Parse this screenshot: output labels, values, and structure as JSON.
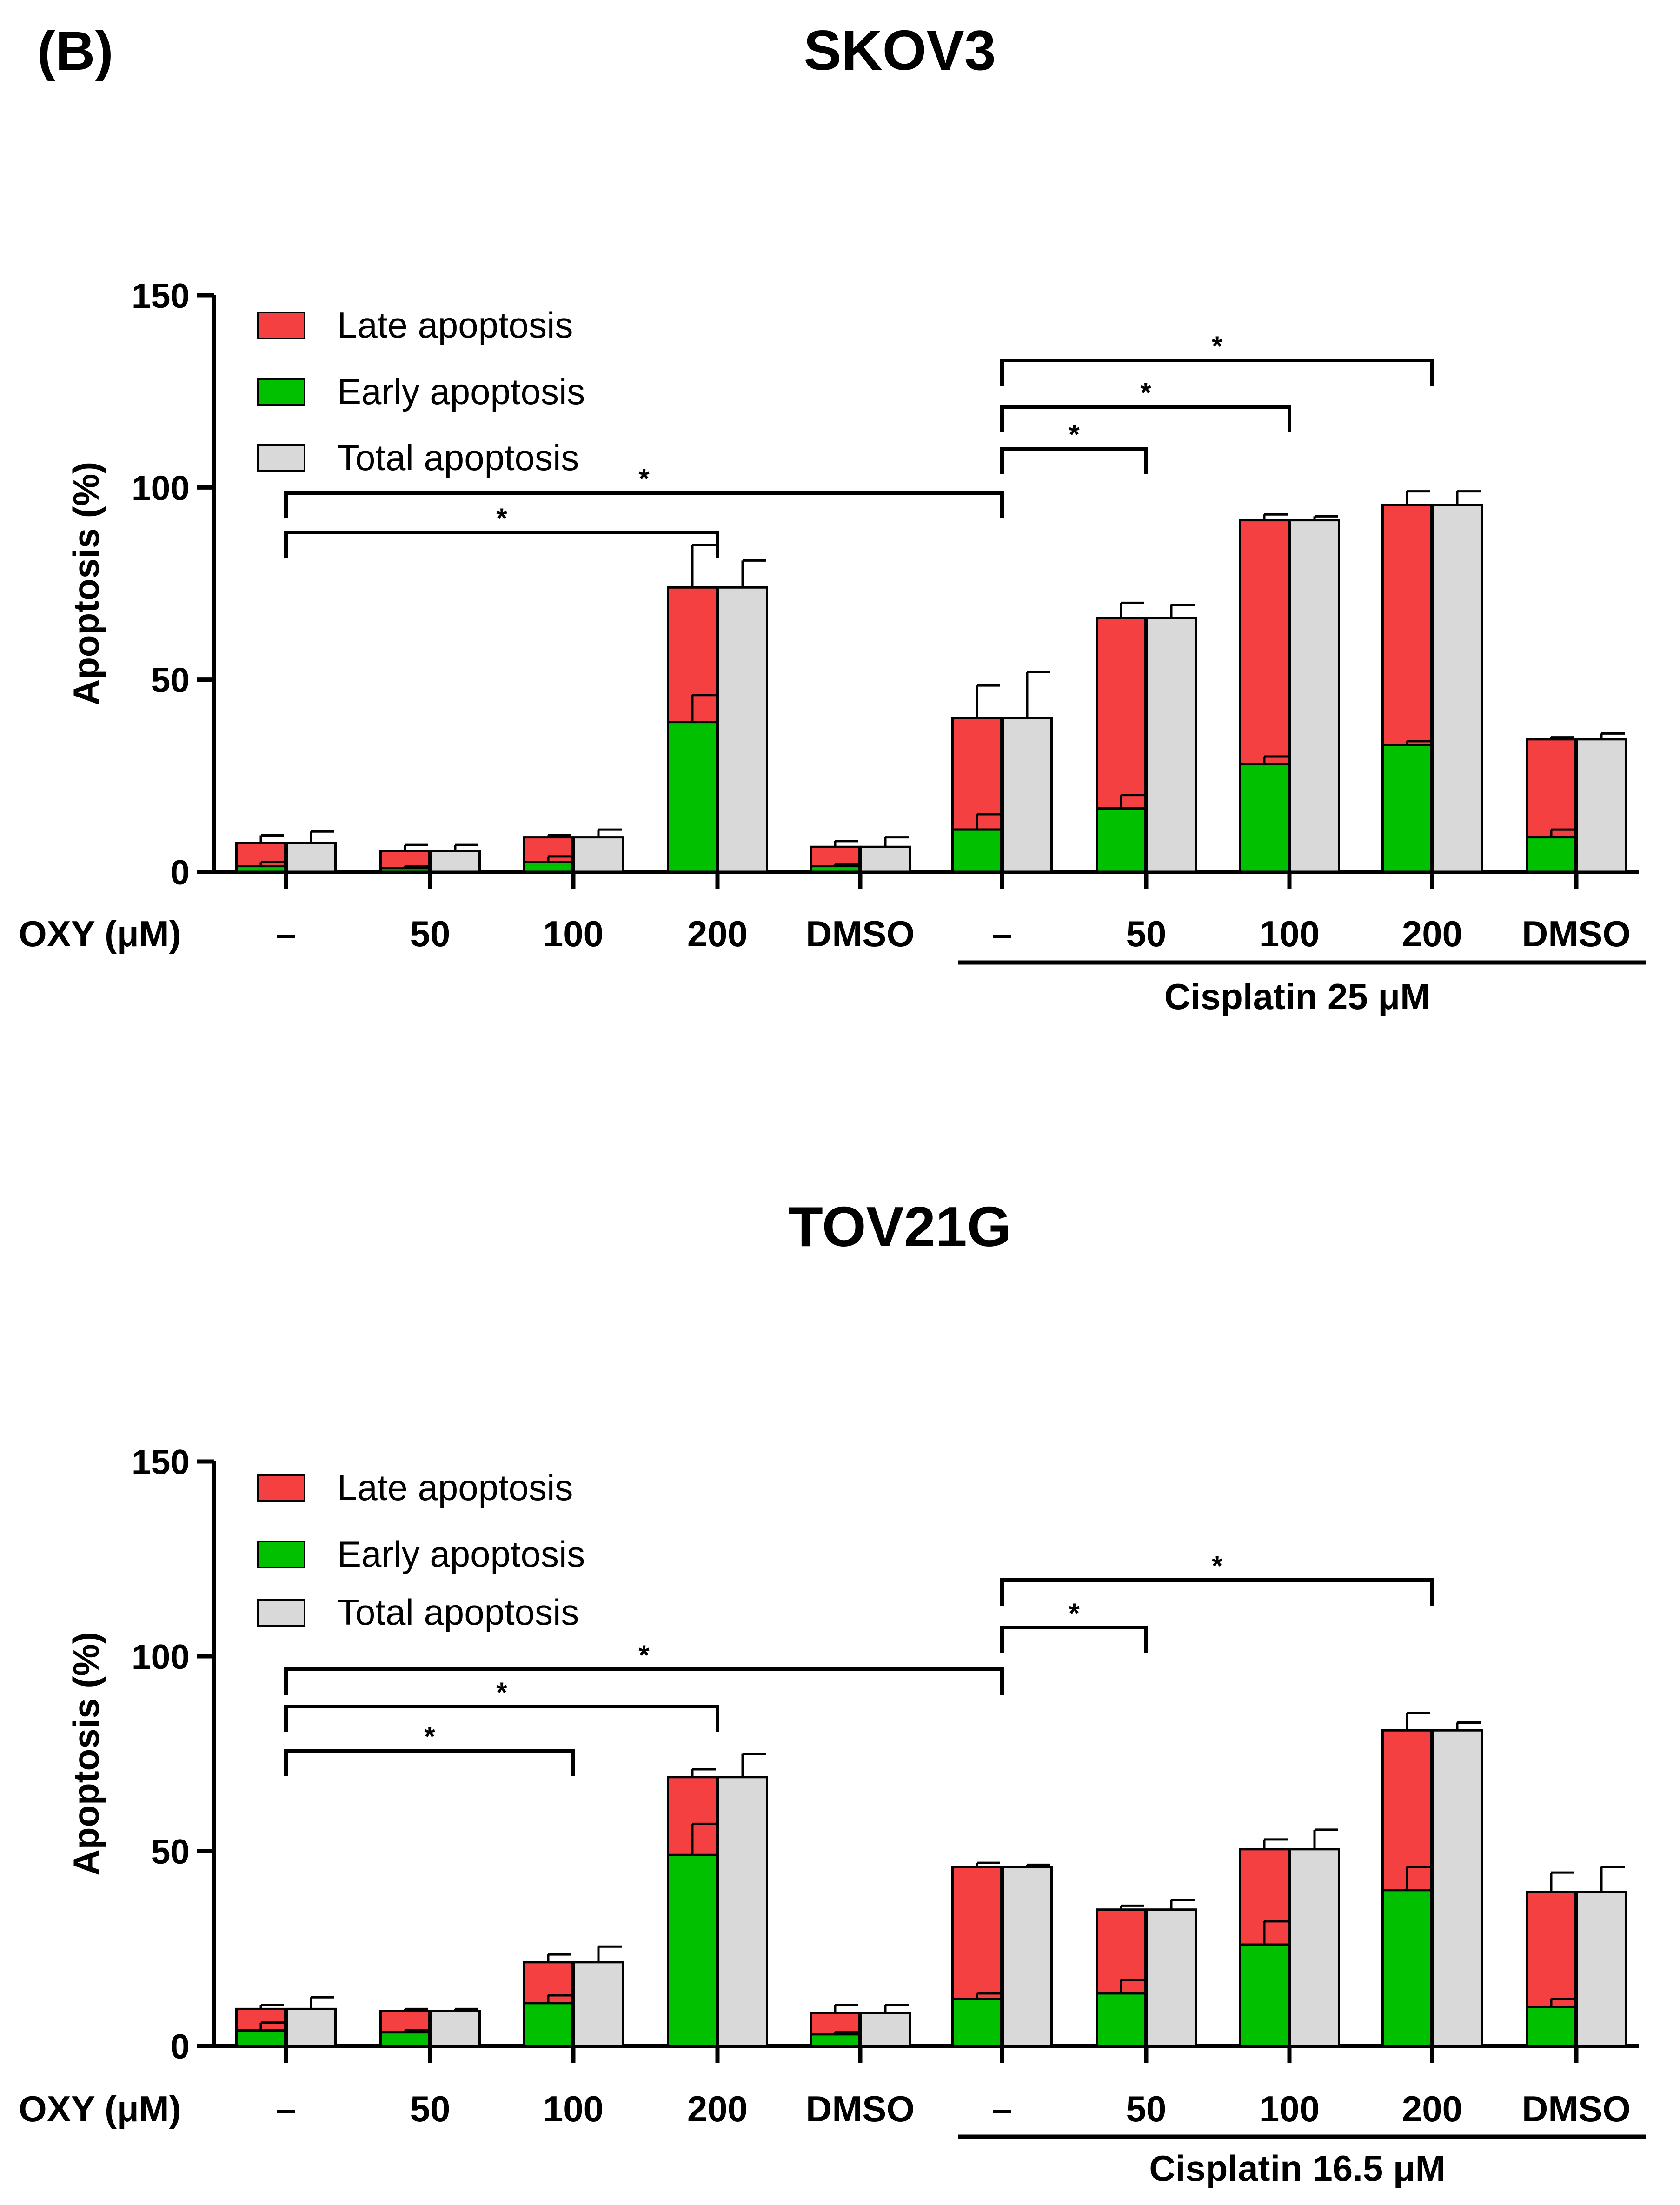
{
  "panel_label": "(B)",
  "chart_data": [
    {
      "type": "bar",
      "title": "SKOV3",
      "ylabel": "Apoptosis (%)",
      "ylim": [
        0,
        150
      ],
      "yticks": [
        0,
        50,
        100,
        150
      ],
      "x_row_label": "OXY (μM)",
      "categories": [
        "–",
        "50",
        "100",
        "200",
        "DMSO",
        "–",
        "50",
        "100",
        "200",
        "DMSO"
      ],
      "group_label": "Cisplatin 25 μM",
      "legend": [
        {
          "name": "Late apoptosis",
          "color": "#f44040"
        },
        {
          "name": "Early apoptosis",
          "color": "#00c000"
        },
        {
          "name": "Total apoptosis",
          "color": "#d9d9d9"
        }
      ],
      "series": [
        {
          "name": "Early apoptosis",
          "values": [
            1.5,
            1,
            2.5,
            39,
            1.5,
            11,
            16.5,
            28,
            33,
            9
          ],
          "errors": [
            1,
            0.5,
            1.5,
            7,
            0.5,
            4,
            3.5,
            2,
            1,
            2
          ]
        },
        {
          "name": "Late apoptosis",
          "values": [
            6,
            4.5,
            6.5,
            35,
            5,
            29,
            49.5,
            63.5,
            62.5,
            25.5
          ],
          "errors": [
            2,
            1.5,
            0.5,
            11,
            1.5,
            8.5,
            4,
            1.5,
            3.5,
            0.5
          ]
        },
        {
          "name": "Total apoptosis",
          "values": [
            7.5,
            5.5,
            9,
            74,
            6.5,
            40,
            66,
            91.5,
            95.5,
            34.5
          ],
          "errors": [
            3,
            1.5,
            2,
            7,
            2.5,
            12,
            3.5,
            1,
            3.5,
            1.5
          ]
        }
      ],
      "significance": [
        {
          "from": 0,
          "to": 3,
          "label": "*"
        },
        {
          "from": 0,
          "to": 5,
          "label": "*"
        },
        {
          "from": 5,
          "to": 6,
          "label": "*"
        },
        {
          "from": 5,
          "to": 7,
          "label": "*"
        },
        {
          "from": 5,
          "to": 8,
          "label": "*"
        }
      ]
    },
    {
      "type": "bar",
      "title": "TOV21G",
      "ylabel": "Apoptosis (%)",
      "ylim": [
        0,
        150
      ],
      "yticks": [
        0,
        50,
        100,
        150
      ],
      "x_row_label": "OXY (μM)",
      "categories": [
        "–",
        "50",
        "100",
        "200",
        "DMSO",
        "–",
        "50",
        "100",
        "200",
        "DMSO"
      ],
      "group_label": "Cisplatin 16.5 μM",
      "legend": [
        {
          "name": "Late apoptosis",
          "color": "#f44040"
        },
        {
          "name": "Early apoptosis",
          "color": "#00c000"
        },
        {
          "name": "Total apoptosis",
          "color": "#d9d9d9"
        }
      ],
      "series": [
        {
          "name": "Early apoptosis",
          "values": [
            4,
            3.5,
            11,
            49,
            3,
            12,
            13.5,
            26,
            40,
            10
          ],
          "errors": [
            2,
            0.5,
            2,
            8,
            0.5,
            1.5,
            3.5,
            6,
            6,
            2
          ]
        },
        {
          "name": "Late apoptosis",
          "values": [
            5.5,
            5.5,
            10.5,
            20,
            5.5,
            34,
            21.5,
            24.5,
            41,
            29.5
          ],
          "errors": [
            1,
            0.5,
            2,
            2,
            2,
            1,
            1,
            2.5,
            4.5,
            5
          ]
        },
        {
          "name": "Total apoptosis",
          "values": [
            9.5,
            9,
            21.5,
            69,
            8.5,
            46,
            35,
            50.5,
            81,
            39.5
          ],
          "errors": [
            3,
            0.5,
            4,
            6,
            2,
            0.5,
            2.5,
            5,
            2,
            6.5
          ]
        }
      ],
      "significance": [
        {
          "from": 0,
          "to": 2,
          "label": "*"
        },
        {
          "from": 0,
          "to": 3,
          "label": "*"
        },
        {
          "from": 0,
          "to": 5,
          "label": "*"
        },
        {
          "from": 5,
          "to": 6,
          "label": "*"
        },
        {
          "from": 5,
          "to": 8,
          "label": "*"
        }
      ]
    }
  ]
}
